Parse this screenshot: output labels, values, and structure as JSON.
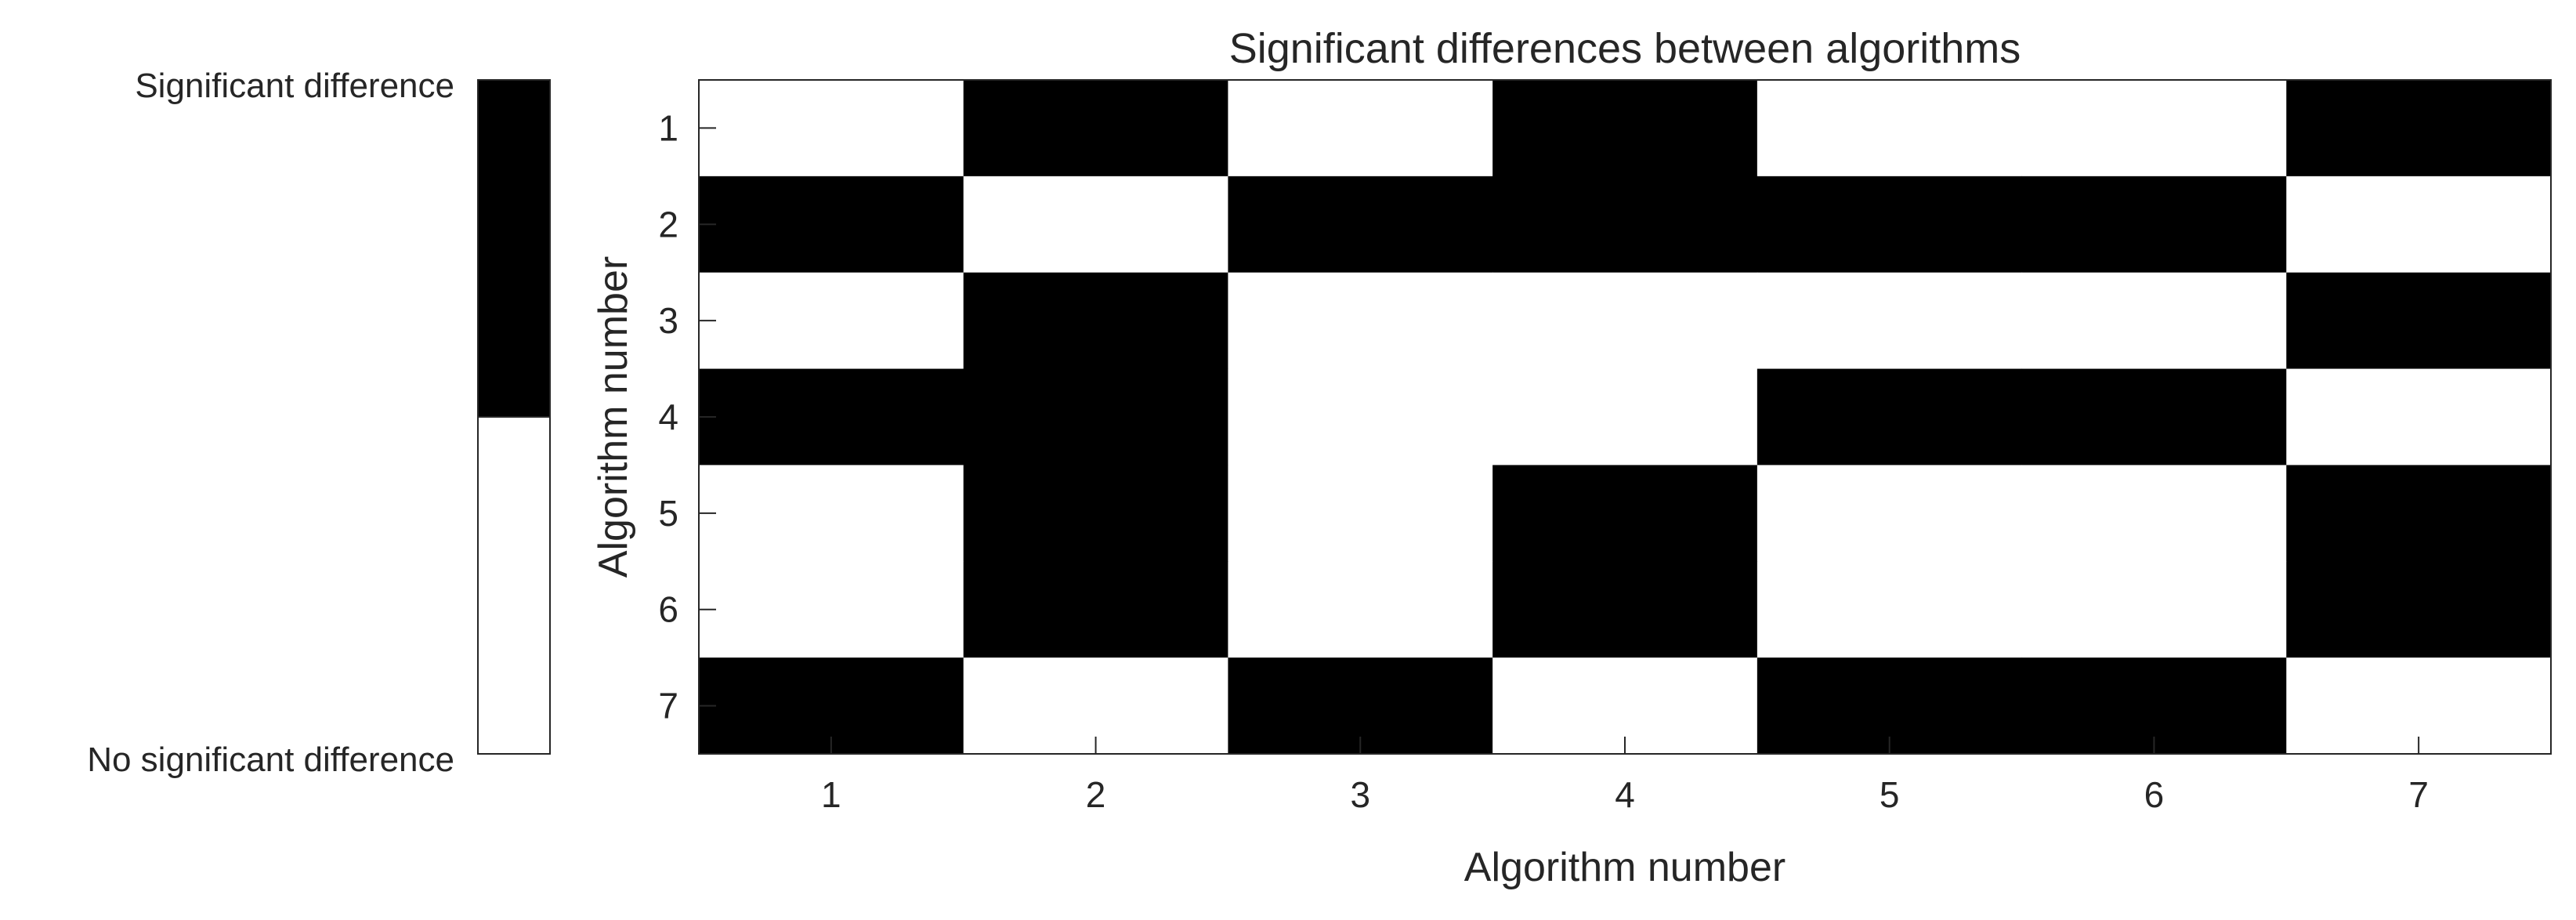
{
  "chart_data": {
    "type": "heatmap",
    "title": "Significant differences between algorithms",
    "xlabel": "Algorithm number",
    "ylabel": "Algorithm number",
    "x_ticks": [
      "1",
      "2",
      "3",
      "4",
      "5",
      "6",
      "7"
    ],
    "y_ticks": [
      "1",
      "2",
      "3",
      "4",
      "5",
      "6",
      "7"
    ],
    "matrix": [
      [
        0,
        1,
        0,
        1,
        0,
        0,
        1
      ],
      [
        1,
        0,
        1,
        1,
        1,
        1,
        0
      ],
      [
        0,
        1,
        0,
        0,
        0,
        0,
        1
      ],
      [
        1,
        1,
        0,
        0,
        1,
        1,
        0
      ],
      [
        0,
        1,
        0,
        1,
        0,
        0,
        1
      ],
      [
        0,
        1,
        0,
        1,
        0,
        0,
        1
      ],
      [
        1,
        0,
        1,
        0,
        1,
        1,
        0
      ]
    ],
    "colorbar": {
      "position": "left",
      "top_label": "Significant difference",
      "bottom_label": "No significant difference",
      "colors": {
        "significant": "#000000",
        "not_significant": "#ffffff"
      }
    },
    "grid": false
  }
}
